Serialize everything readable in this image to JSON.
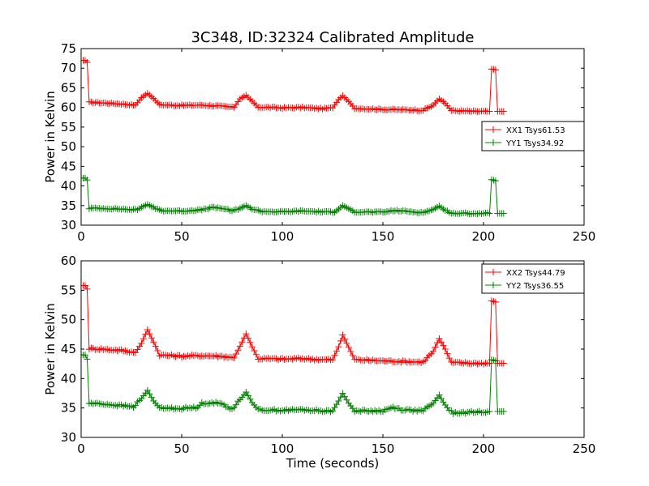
{
  "figure": {
    "title": "3C348, ID:32324 Calibrated Amplitude",
    "xlabel": "Time (seconds)"
  },
  "colors": {
    "xx": "#ff0000",
    "yy": "#008000",
    "frame": "#000000"
  },
  "chart_data": [
    {
      "type": "line",
      "title": "3C348, ID:32324 Calibrated Amplitude",
      "xlabel": "",
      "ylabel": "Power in Kelvin",
      "xlim": [
        0,
        250
      ],
      "ylim": [
        30,
        75
      ],
      "xticks": [
        0,
        50,
        100,
        150,
        200,
        250
      ],
      "yticks": [
        30,
        35,
        40,
        45,
        50,
        55,
        60,
        65,
        70,
        75
      ],
      "grid": false,
      "legend_position": "center-right",
      "marker": "+",
      "series": [
        {
          "name": "XX1 Tsys61.53",
          "color": "#ff0000",
          "base_points": [
            [
              0,
              72
            ],
            [
              2,
              72
            ],
            [
              3,
              71.5
            ],
            [
              4,
              61.3
            ],
            [
              10,
              61.2
            ],
            [
              20,
              60.9
            ],
            [
              27,
              60.6
            ],
            [
              30,
              62.5
            ],
            [
              33,
              63.6
            ],
            [
              36,
              62.3
            ],
            [
              39,
              60.7
            ],
            [
              50,
              60.5
            ],
            [
              60,
              60.6
            ],
            [
              70,
              60.3
            ],
            [
              76,
              60.0
            ],
            [
              79,
              62.2
            ],
            [
              82,
              63.1
            ],
            [
              85,
              61.6
            ],
            [
              88,
              60.1
            ],
            [
              100,
              59.9
            ],
            [
              110,
              60.0
            ],
            [
              120,
              59.7
            ],
            [
              125,
              59.9
            ],
            [
              128,
              62.0
            ],
            [
              130,
              63.0
            ],
            [
              133,
              61.5
            ],
            [
              136,
              59.8
            ],
            [
              150,
              59.5
            ],
            [
              160,
              59.4
            ],
            [
              170,
              59.3
            ],
            [
              175,
              60.6
            ],
            [
              178,
              62.2
            ],
            [
              181,
              61.1
            ],
            [
              184,
              59.2
            ],
            [
              195,
              59.0
            ],
            [
              203,
              59.0
            ],
            [
              204,
              69.8
            ],
            [
              206,
              69.6
            ],
            [
              207,
              59.0
            ],
            [
              210,
              59.0
            ]
          ]
        },
        {
          "name": "YY1 Tsys34.92",
          "color": "#008000",
          "base_points": [
            [
              0,
              42
            ],
            [
              2,
              42
            ],
            [
              3,
              41.5
            ],
            [
              4,
              34.3
            ],
            [
              10,
              34.3
            ],
            [
              20,
              34.1
            ],
            [
              28,
              33.9
            ],
            [
              30,
              34.6
            ],
            [
              33,
              35.3
            ],
            [
              36,
              34.5
            ],
            [
              40,
              33.7
            ],
            [
              50,
              33.6
            ],
            [
              60,
              33.9
            ],
            [
              65,
              34.5
            ],
            [
              70,
              34.3
            ],
            [
              75,
              33.6
            ],
            [
              79,
              34.3
            ],
            [
              82,
              35.0
            ],
            [
              85,
              34.1
            ],
            [
              90,
              33.5
            ],
            [
              100,
              33.4
            ],
            [
              110,
              33.6
            ],
            [
              120,
              33.4
            ],
            [
              126,
              33.3
            ],
            [
              128,
              34.1
            ],
            [
              130,
              35.0
            ],
            [
              133,
              34.2
            ],
            [
              136,
              33.4
            ],
            [
              150,
              33.3
            ],
            [
              155,
              33.7
            ],
            [
              160,
              33.6
            ],
            [
              170,
              33.2
            ],
            [
              175,
              34.0
            ],
            [
              178,
              34.9
            ],
            [
              181,
              33.7
            ],
            [
              185,
              33.0
            ],
            [
              195,
              33.0
            ],
            [
              203,
              33.0
            ],
            [
              204,
              41.6
            ],
            [
              206,
              41.3
            ],
            [
              207,
              33.0
            ],
            [
              210,
              33.0
            ]
          ]
        }
      ]
    },
    {
      "type": "line",
      "title": "",
      "xlabel": "Time (seconds)",
      "ylabel": "Power in Kelvin",
      "xlim": [
        0,
        250
      ],
      "ylim": [
        30,
        60
      ],
      "xticks": [
        0,
        50,
        100,
        150,
        200,
        250
      ],
      "yticks": [
        30,
        35,
        40,
        45,
        50,
        55,
        60
      ],
      "grid": false,
      "legend_position": "top-right",
      "marker": "+",
      "series": [
        {
          "name": "XX2 Tsys44.79",
          "color": "#ff0000",
          "base_points": [
            [
              0,
              55.8
            ],
            [
              2,
              55.8
            ],
            [
              3,
              55.2
            ],
            [
              4,
              45.1
            ],
            [
              10,
              45.0
            ],
            [
              20,
              44.8
            ],
            [
              27,
              44.4
            ],
            [
              30,
              46.0
            ],
            [
              33,
              48.3
            ],
            [
              36,
              46.2
            ],
            [
              39,
              44.0
            ],
            [
              50,
              43.8
            ],
            [
              60,
              43.9
            ],
            [
              70,
              43.8
            ],
            [
              76,
              43.5
            ],
            [
              79,
              45.5
            ],
            [
              82,
              47.6
            ],
            [
              85,
              45.4
            ],
            [
              88,
              43.4
            ],
            [
              100,
              43.3
            ],
            [
              110,
              43.4
            ],
            [
              120,
              43.2
            ],
            [
              125,
              43.2
            ],
            [
              128,
              45.4
            ],
            [
              130,
              47.4
            ],
            [
              133,
              45.3
            ],
            [
              136,
              43.2
            ],
            [
              150,
              43.0
            ],
            [
              160,
              42.9
            ],
            [
              170,
              42.8
            ],
            [
              175,
              44.6
            ],
            [
              178,
              46.8
            ],
            [
              181,
              45.0
            ],
            [
              184,
              42.7
            ],
            [
              195,
              42.6
            ],
            [
              203,
              42.6
            ],
            [
              204,
              53.2
            ],
            [
              206,
              53.0
            ],
            [
              207,
              42.6
            ],
            [
              210,
              42.6
            ]
          ]
        },
        {
          "name": "YY2 Tsys36.55",
          "color": "#008000",
          "base_points": [
            [
              0,
              44
            ],
            [
              2,
              44
            ],
            [
              3,
              43.3
            ],
            [
              4,
              35.8
            ],
            [
              10,
              35.7
            ],
            [
              20,
              35.4
            ],
            [
              26,
              35.2
            ],
            [
              30,
              36.6
            ],
            [
              33,
              38.0
            ],
            [
              36,
              36.2
            ],
            [
              39,
              35.0
            ],
            [
              50,
              34.9
            ],
            [
              58,
              35.1
            ],
            [
              60,
              35.8
            ],
            [
              65,
              35.9
            ],
            [
              70,
              35.7
            ],
            [
              75,
              34.8
            ],
            [
              79,
              36.4
            ],
            [
              82,
              37.7
            ],
            [
              85,
              35.9
            ],
            [
              88,
              34.7
            ],
            [
              100,
              34.6
            ],
            [
              110,
              34.7
            ],
            [
              120,
              34.5
            ],
            [
              125,
              34.5
            ],
            [
              128,
              36.2
            ],
            [
              130,
              37.5
            ],
            [
              133,
              35.8
            ],
            [
              136,
              34.5
            ],
            [
              150,
              34.5
            ],
            [
              155,
              35.1
            ],
            [
              160,
              34.7
            ],
            [
              170,
              34.5
            ],
            [
              175,
              35.8
            ],
            [
              178,
              37.2
            ],
            [
              181,
              35.4
            ],
            [
              185,
              34.1
            ],
            [
              195,
              34.3
            ],
            [
              203,
              34.4
            ],
            [
              204,
              43.2
            ],
            [
              206,
              43.0
            ],
            [
              207,
              34.4
            ],
            [
              210,
              34.4
            ]
          ]
        }
      ]
    }
  ]
}
